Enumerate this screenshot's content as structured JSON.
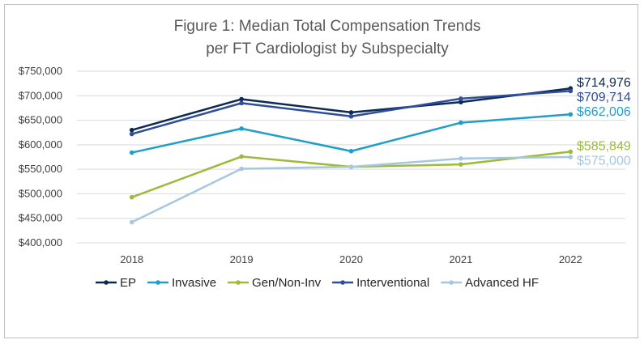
{
  "chart_data": {
    "type": "line",
    "title": "Figure 1: Median Total Compensation Trends",
    "subtitle": "per FT Cardiologist by Subspecialty",
    "xlabel": "",
    "ylabel": "",
    "categories": [
      "2018",
      "2019",
      "2020",
      "2021",
      "2022"
    ],
    "ylim": [
      400000,
      750000
    ],
    "y_ticks": [
      400000,
      450000,
      500000,
      550000,
      600000,
      650000,
      700000,
      750000
    ],
    "y_tick_labels": [
      "$400,000",
      "$450,000",
      "$500,000",
      "$550,000",
      "$600,000",
      "$650,000",
      "$700,000",
      "$750,000"
    ],
    "grid": true,
    "legend_position": "bottom",
    "series": [
      {
        "name": "EP",
        "color": "#0d2a52",
        "values": [
          630000,
          693000,
          666000,
          687000,
          714976
        ],
        "end_label": "$714,976"
      },
      {
        "name": "Invasive",
        "color": "#1f9fc7",
        "values": [
          584000,
          633000,
          587000,
          645000,
          662006
        ],
        "end_label": "$662,006"
      },
      {
        "name": "Gen/Non-Inv",
        "color": "#9cbb3a",
        "values": [
          493000,
          576000,
          555000,
          560000,
          585849
        ],
        "end_label": "$585,849"
      },
      {
        "name": "Interventional",
        "color": "#2f4d9a",
        "values": [
          622000,
          685000,
          658000,
          694000,
          709714
        ],
        "end_label": "$709,714"
      },
      {
        "name": "Advanced HF",
        "color": "#a6c7e0",
        "values": [
          442000,
          551000,
          555000,
          572000,
          575000
        ],
        "end_label": "$575,000"
      }
    ]
  }
}
